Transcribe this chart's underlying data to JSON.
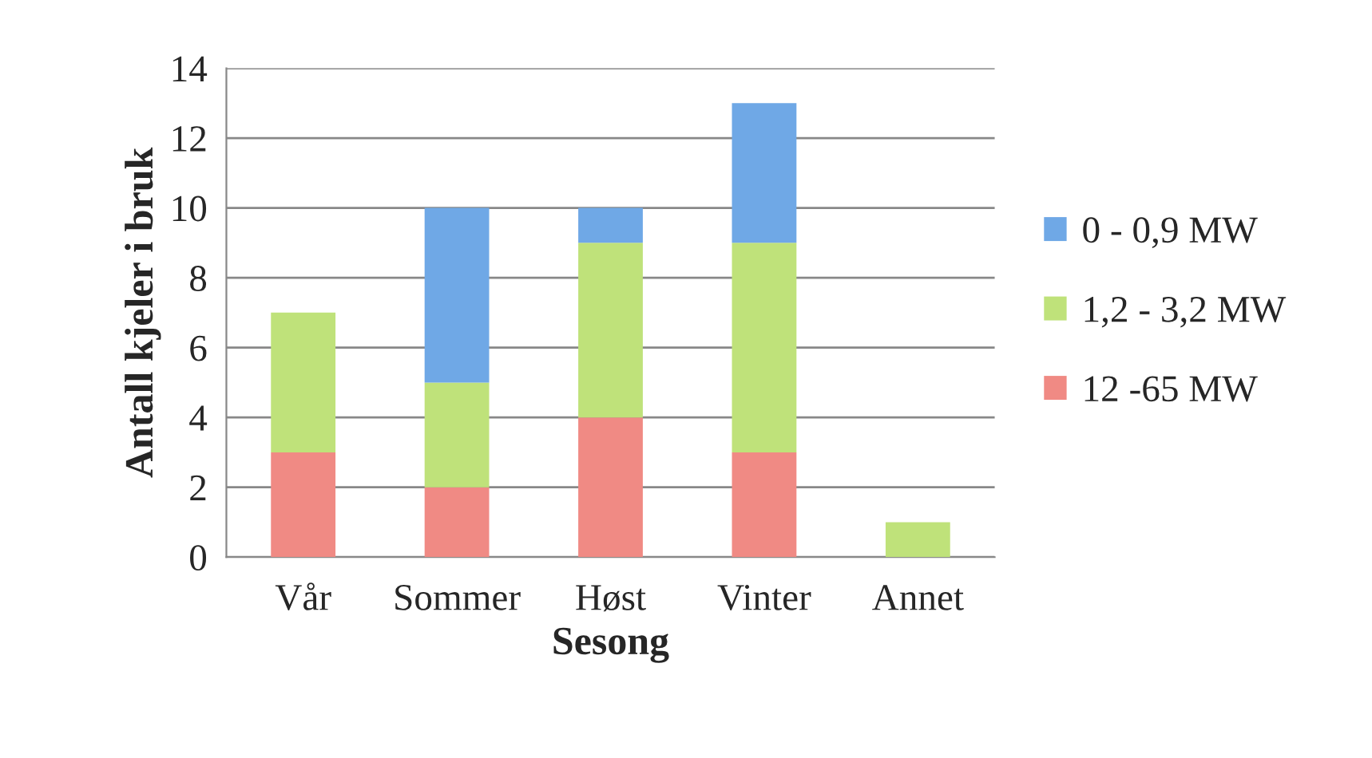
{
  "chart_data": {
    "type": "bar",
    "stacked": true,
    "xlabel": "Sesong",
    "ylabel": "Antall kjeler i bruk",
    "categories": [
      "Vår",
      "Sommer",
      "Høst",
      "Vinter",
      "Annet"
    ],
    "series": [
      {
        "name": "12 -65 MW",
        "color": "#f08a84",
        "values": [
          3,
          2,
          4,
          3,
          0
        ]
      },
      {
        "name": "1,2 - 3,2 MW",
        "color": "#bfe27a",
        "values": [
          4,
          3,
          5,
          6,
          1
        ]
      },
      {
        "name": "0 - 0,9 MW",
        "color": "#6fa8e6",
        "values": [
          0,
          5,
          1,
          4,
          0
        ]
      }
    ],
    "ylim": [
      0,
      14
    ],
    "yticks": [
      0,
      2,
      4,
      6,
      8,
      10,
      12,
      14
    ],
    "grid": "y",
    "legend": "right"
  }
}
